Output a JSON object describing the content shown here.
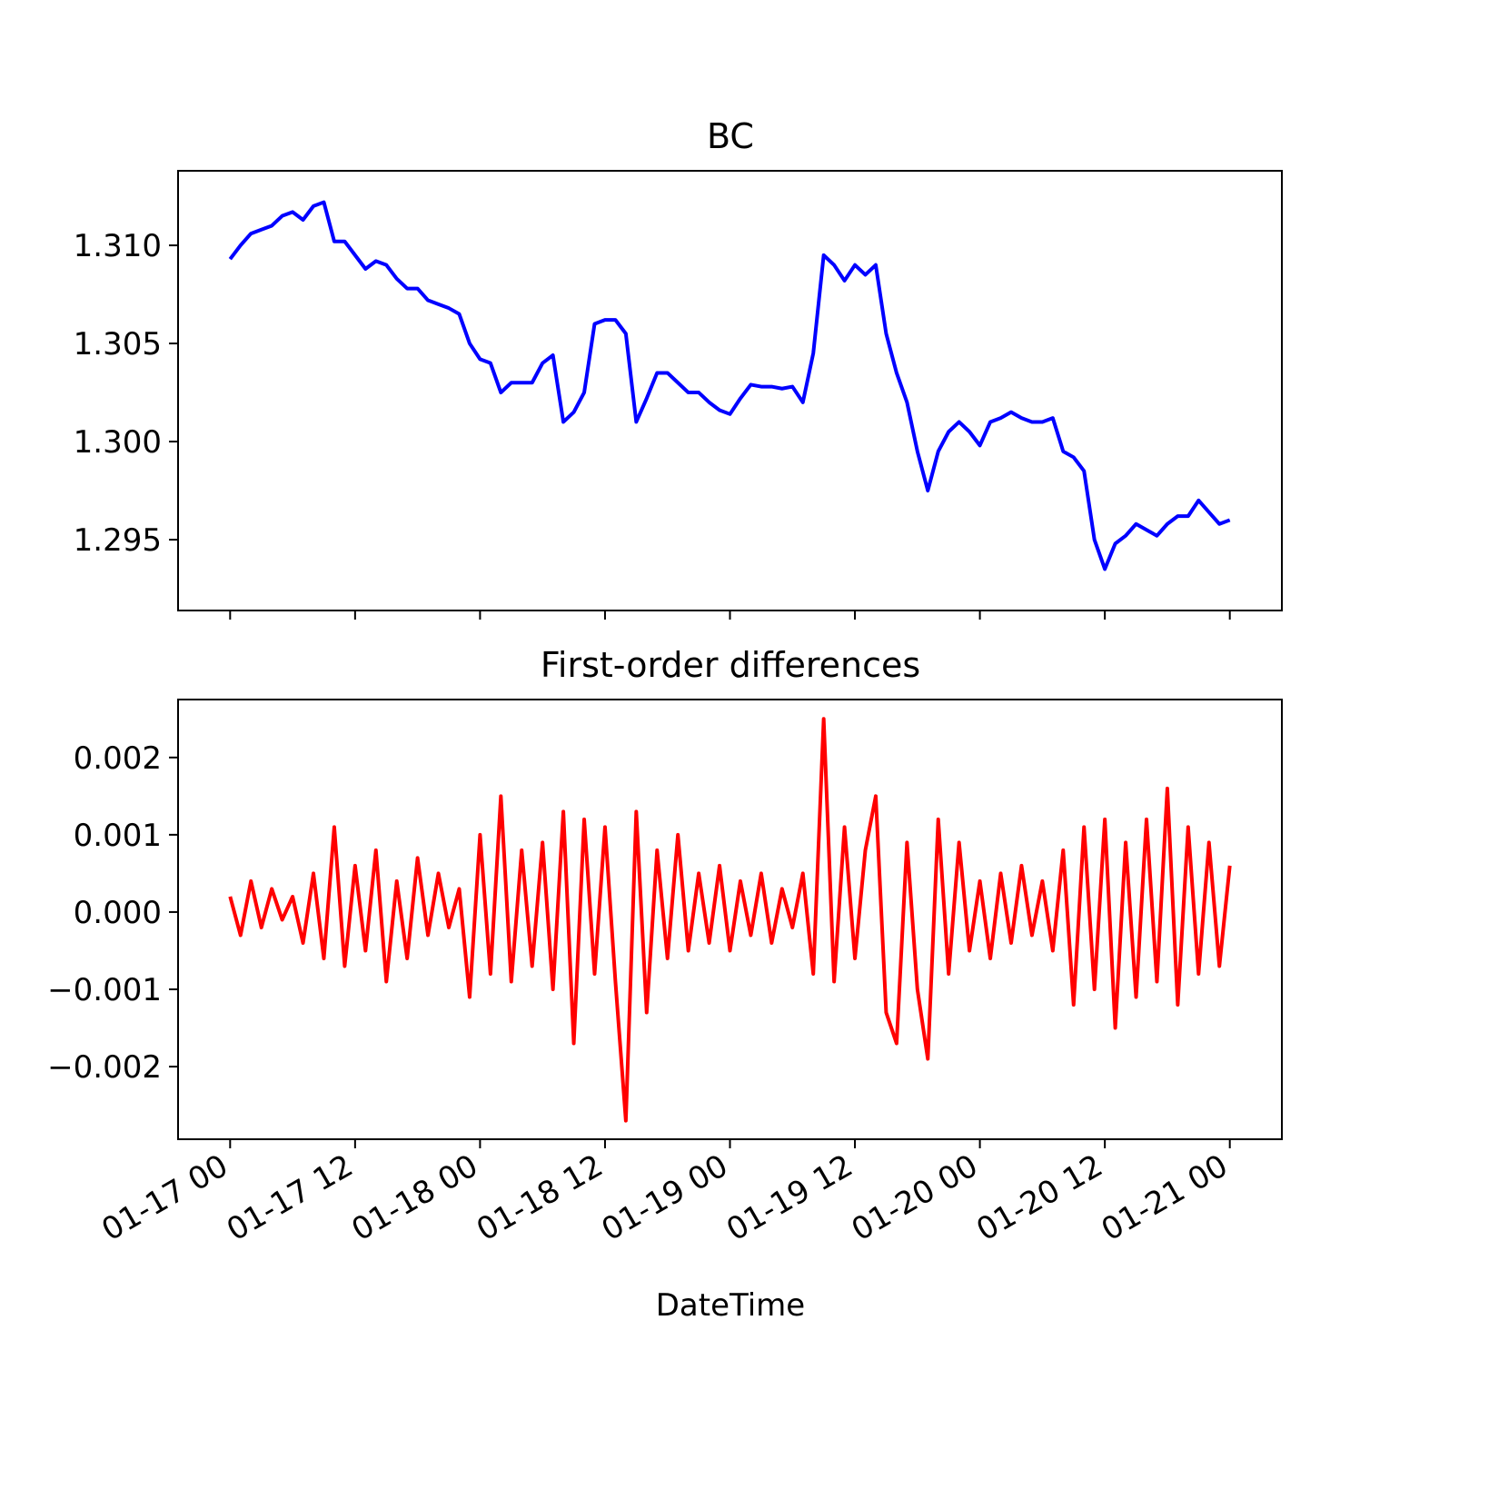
{
  "chart_data": [
    {
      "type": "line",
      "title": "BC",
      "color": "#0000ff",
      "x": [
        "01-17 00",
        "01-17 01",
        "01-17 02",
        "01-17 03",
        "01-17 04",
        "01-17 05",
        "01-17 06",
        "01-17 07",
        "01-17 08",
        "01-17 09",
        "01-17 10",
        "01-17 11",
        "01-17 12",
        "01-17 13",
        "01-17 14",
        "01-17 15",
        "01-17 16",
        "01-17 17",
        "01-17 18",
        "01-17 19",
        "01-17 20",
        "01-17 21",
        "01-17 22",
        "01-17 23",
        "01-18 00",
        "01-18 01",
        "01-18 02",
        "01-18 03",
        "01-18 04",
        "01-18 05",
        "01-18 06",
        "01-18 07",
        "01-18 08",
        "01-18 09",
        "01-18 10",
        "01-18 11",
        "01-18 12",
        "01-18 13",
        "01-18 14",
        "01-18 15",
        "01-18 16",
        "01-18 17",
        "01-18 18",
        "01-18 19",
        "01-18 20",
        "01-18 21",
        "01-18 22",
        "01-18 23",
        "01-19 00",
        "01-19 01",
        "01-19 02",
        "01-19 03",
        "01-19 04",
        "01-19 05",
        "01-19 06",
        "01-19 07",
        "01-19 08",
        "01-19 09",
        "01-19 10",
        "01-19 11",
        "01-19 12",
        "01-19 13",
        "01-19 14",
        "01-19 15",
        "01-19 16",
        "01-19 17",
        "01-19 18",
        "01-19 19",
        "01-19 20",
        "01-19 21",
        "01-19 22",
        "01-19 23",
        "01-20 00",
        "01-20 01",
        "01-20 02",
        "01-20 03",
        "01-20 04",
        "01-20 05",
        "01-20 06",
        "01-20 07",
        "01-20 08",
        "01-20 09",
        "01-20 10",
        "01-20 11",
        "01-20 12",
        "01-20 13",
        "01-20 14",
        "01-20 15",
        "01-20 16",
        "01-20 17",
        "01-20 18",
        "01-20 19",
        "01-20 20",
        "01-20 21",
        "01-20 22",
        "01-20 23",
        "01-21 00"
      ],
      "values": [
        1.3093,
        1.31,
        1.3106,
        1.3108,
        1.311,
        1.3115,
        1.3117,
        1.3113,
        1.312,
        1.3122,
        1.3102,
        1.3102,
        1.3095,
        1.3088,
        1.3092,
        1.309,
        1.3083,
        1.3078,
        1.3078,
        1.3072,
        1.307,
        1.3068,
        1.3065,
        1.305,
        1.3042,
        1.304,
        1.3025,
        1.303,
        1.303,
        1.303,
        1.304,
        1.3044,
        1.301,
        1.3015,
        1.3025,
        1.306,
        1.3062,
        1.3062,
        1.3055,
        1.301,
        1.3022,
        1.3035,
        1.3035,
        1.303,
        1.3025,
        1.3025,
        1.302,
        1.3016,
        1.3014,
        1.3022,
        1.3029,
        1.3028,
        1.3028,
        1.3027,
        1.3028,
        1.302,
        1.3045,
        1.3095,
        1.309,
        1.3082,
        1.309,
        1.3085,
        1.309,
        1.3055,
        1.3035,
        1.302,
        1.2995,
        1.2975,
        1.2995,
        1.3005,
        1.301,
        1.3005,
        1.2998,
        1.301,
        1.3012,
        1.3015,
        1.3012,
        1.301,
        1.301,
        1.3012,
        1.2995,
        1.2992,
        1.2985,
        1.295,
        1.2935,
        1.2948,
        1.2952,
        1.2958,
        1.2955,
        1.2952,
        1.2958,
        1.2962,
        1.2962,
        1.297,
        1.2964,
        1.2958,
        1.296
      ],
      "xlim": [
        "01-16 19",
        "01-21 05"
      ],
      "ylim": [
        1.29139,
        1.3138
      ],
      "yticks": [
        1.295,
        {
          "value": 1.3,
          "label": "1.300"
        },
        1.305,
        {
          "value": 1.31,
          "label": "1.310"
        }
      ]
    },
    {
      "type": "line",
      "title": "First-order differences",
      "color": "#ff0000",
      "xlabel": "DateTime",
      "x": [
        "01-17 00",
        "01-17 01",
        "01-17 02",
        "01-17 03",
        "01-17 04",
        "01-17 05",
        "01-17 06",
        "01-17 07",
        "01-17 08",
        "01-17 09",
        "01-17 10",
        "01-17 11",
        "01-17 12",
        "01-17 13",
        "01-17 14",
        "01-17 15",
        "01-17 16",
        "01-17 17",
        "01-17 18",
        "01-17 19",
        "01-17 20",
        "01-17 21",
        "01-17 22",
        "01-17 23",
        "01-18 00",
        "01-18 01",
        "01-18 02",
        "01-18 03",
        "01-18 04",
        "01-18 05",
        "01-18 06",
        "01-18 07",
        "01-18 08",
        "01-18 09",
        "01-18 10",
        "01-18 11",
        "01-18 12",
        "01-18 13",
        "01-18 14",
        "01-18 15",
        "01-18 16",
        "01-18 17",
        "01-18 18",
        "01-18 19",
        "01-18 20",
        "01-18 21",
        "01-18 22",
        "01-18 23",
        "01-19 00",
        "01-19 01",
        "01-19 02",
        "01-19 03",
        "01-19 04",
        "01-19 05",
        "01-19 06",
        "01-19 07",
        "01-19 08",
        "01-19 09",
        "01-19 10",
        "01-19 11",
        "01-19 12",
        "01-19 13",
        "01-19 14",
        "01-19 15",
        "01-19 16",
        "01-19 17",
        "01-19 18",
        "01-19 19",
        "01-19 20",
        "01-19 21",
        "01-19 22",
        "01-19 23",
        "01-20 00",
        "01-20 01",
        "01-20 02",
        "01-20 03",
        "01-20 04",
        "01-20 05",
        "01-20 06",
        "01-20 07",
        "01-20 08",
        "01-20 09",
        "01-20 10",
        "01-20 11",
        "01-20 12",
        "01-20 13",
        "01-20 14",
        "01-20 15",
        "01-20 16",
        "01-20 17",
        "01-20 18",
        "01-20 19",
        "01-20 20",
        "01-20 21",
        "01-20 22",
        "01-20 23",
        "01-21 00"
      ],
      "values": [
        0.0002,
        -0.0003,
        0.0004,
        -0.0002,
        0.0003,
        -0.0001,
        0.0002,
        -0.0004,
        0.0005,
        -0.0006,
        0.0011,
        -0.0007,
        0.0006,
        -0.0005,
        0.0008,
        -0.0009,
        0.0004,
        -0.0006,
        0.0007,
        -0.0003,
        0.0005,
        -0.0002,
        0.0003,
        -0.0011,
        0.001,
        -0.0008,
        0.0015,
        -0.0009,
        0.0008,
        -0.0007,
        0.0009,
        -0.001,
        0.0013,
        -0.0017,
        0.0012,
        -0.0008,
        0.0011,
        -0.0009,
        -0.0027,
        0.0013,
        -0.0013,
        0.0008,
        -0.0006,
        0.001,
        -0.0005,
        0.0005,
        -0.0004,
        0.0006,
        -0.0005,
        0.0004,
        -0.0003,
        0.0005,
        -0.0004,
        0.0003,
        -0.0002,
        0.0005,
        -0.0008,
        0.0025,
        -0.0009,
        0.0011,
        -0.0006,
        0.0008,
        0.0015,
        -0.0013,
        -0.0017,
        0.0009,
        -0.001,
        -0.0019,
        0.0012,
        -0.0008,
        0.0009,
        -0.0005,
        0.0004,
        -0.0006,
        0.0005,
        -0.0004,
        0.0006,
        -0.0003,
        0.0004,
        -0.0005,
        0.0008,
        -0.0012,
        0.0011,
        -0.001,
        0.0012,
        -0.0015,
        0.0009,
        -0.0011,
        0.0012,
        -0.0009,
        0.0016,
        -0.0012,
        0.0011,
        -0.0008,
        0.0009,
        -0.0007,
        0.0006
      ],
      "xlim": [
        "01-16 19",
        "01-21 05"
      ],
      "xticks": [
        "01-17 00",
        "01-17 12",
        "01-18 00",
        "01-18 12",
        "01-19 00",
        "01-19 12",
        "01-20 00",
        "01-20 12",
        "01-21 00"
      ],
      "ylim": [
        -0.00294,
        0.00275
      ],
      "yticks": [
        {
          "value": -0.002,
          "label": "−0.002"
        },
        {
          "value": -0.001,
          "label": "−0.001"
        },
        {
          "value": 0,
          "label": "0.000"
        },
        0.001,
        0.002
      ]
    }
  ]
}
